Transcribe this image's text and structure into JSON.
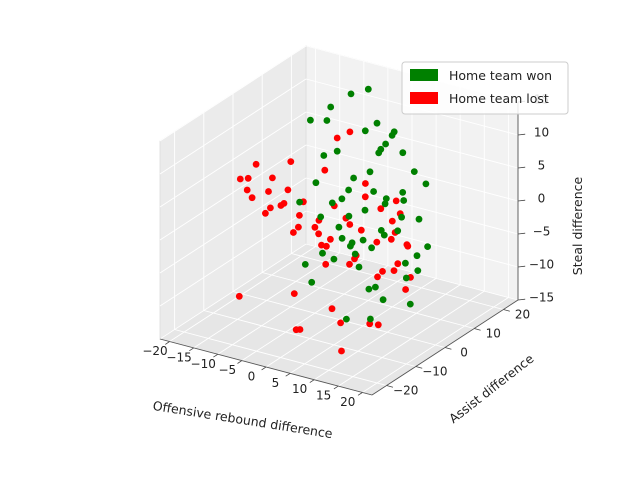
{
  "chart_data": {
    "type": "scatter",
    "projection": "3d",
    "xlabel": "Offensive rebound difference",
    "ylabel": "Assist difference",
    "zlabel": "Steal difference",
    "xlim": [
      -22,
      22
    ],
    "ylim": [
      -25,
      25
    ],
    "zlim": [
      -15,
      15
    ],
    "xticks": [
      -20,
      -15,
      -10,
      -5,
      0,
      5,
      10,
      15,
      20
    ],
    "yticks": [
      -20,
      -10,
      0,
      10,
      20
    ],
    "zticks": [
      -15,
      -10,
      -5,
      0,
      5,
      10,
      15
    ],
    "grid": true,
    "legend_position": "top-right",
    "series": [
      {
        "name": "Home team won",
        "color": "#008000",
        "x": [
          -12,
          -9,
          -6,
          -3,
          0,
          3,
          6,
          9,
          12,
          15,
          -8,
          -4,
          0,
          4,
          8,
          12,
          16,
          -6,
          -2,
          2,
          6,
          10,
          14,
          -10,
          -5,
          0,
          5,
          10,
          15,
          18,
          3,
          7,
          11,
          -1,
          9,
          13,
          5,
          1,
          -7,
          17,
          8,
          4,
          12,
          0,
          6,
          10,
          2,
          14,
          -3,
          16,
          20,
          19,
          11,
          7,
          -11,
          -4,
          9,
          13,
          15,
          5
        ],
        "y": [
          10,
          12,
          14,
          15,
          13,
          11,
          9,
          7,
          6,
          5,
          8,
          6,
          5,
          4,
          3,
          2,
          1,
          2,
          1,
          0,
          -1,
          -2,
          -3,
          3,
          2,
          1,
          0,
          -1,
          -2,
          -3,
          -5,
          -6,
          -7,
          -4,
          -8,
          -9,
          -10,
          -11,
          0,
          -5,
          5,
          7,
          -4,
          9,
          -6,
          -12,
          11,
          -8,
          6,
          -2,
          -6,
          -1,
          4,
          -9,
          14,
          10,
          -3,
          0,
          -14,
          2
        ],
        "z": [
          10,
          12,
          14,
          15,
          11,
          9,
          12,
          10,
          8,
          7,
          6,
          8,
          5,
          7,
          4,
          6,
          3,
          4,
          2,
          5,
          3,
          1,
          2,
          0,
          -1,
          3,
          -2,
          0,
          -3,
          -1,
          1,
          -2,
          0,
          -4,
          -3,
          -5,
          -2,
          -6,
          -8,
          -4,
          13,
          9,
          6,
          11,
          -1,
          2,
          8,
          -7,
          -5,
          -9,
          -2,
          0,
          4,
          -11,
          9,
          -3,
          7,
          3,
          -8,
          -10
        ]
      },
      {
        "name": "Home team lost",
        "color": "#ff0000",
        "x": [
          -15,
          -12,
          -10,
          -8,
          -6,
          -4,
          -2,
          0,
          2,
          4,
          6,
          8,
          -14,
          -11,
          -9,
          -7,
          -5,
          -3,
          -1,
          1,
          3,
          5,
          7,
          9,
          11,
          -13,
          -10,
          -6,
          -2,
          2,
          6,
          10,
          -8,
          -4,
          0,
          4,
          8,
          12,
          -12,
          -6,
          0,
          6,
          -10,
          -2,
          4,
          10,
          -16,
          -9,
          -3,
          3,
          1,
          -5,
          7,
          -7,
          5,
          -1,
          -11,
          9,
          13,
          -4
        ],
        "y": [
          -5,
          -3,
          -1,
          1,
          3,
          5,
          7,
          9,
          11,
          13,
          8,
          6,
          -8,
          -6,
          -4,
          -2,
          0,
          2,
          4,
          6,
          8,
          10,
          12,
          4,
          2,
          -10,
          -7,
          -4,
          -1,
          2,
          5,
          8,
          -12,
          -9,
          -6,
          -3,
          0,
          3,
          -14,
          -10,
          -7,
          -4,
          0,
          -12,
          -9,
          -6,
          -2,
          10,
          14,
          16,
          -15,
          12,
          -11,
          7,
          15,
          -13,
          -16,
          -14,
          -8,
          6
        ],
        "z": [
          2,
          5,
          3,
          1,
          -2,
          0,
          -3,
          1,
          -1,
          0,
          -4,
          -2,
          6,
          4,
          2,
          0,
          -2,
          -4,
          -1,
          -3,
          -5,
          -2,
          -6,
          -7,
          -5,
          5,
          2,
          -1,
          -4,
          -6,
          -8,
          -9,
          3,
          0,
          -2,
          -5,
          -7,
          -9,
          8,
          4,
          0,
          -3,
          7,
          -8,
          -10,
          -12,
          6,
          3,
          1,
          -3,
          -12,
          9,
          -11,
          -10,
          -7,
          -13,
          -9,
          -14,
          -11,
          10
        ]
      }
    ]
  }
}
